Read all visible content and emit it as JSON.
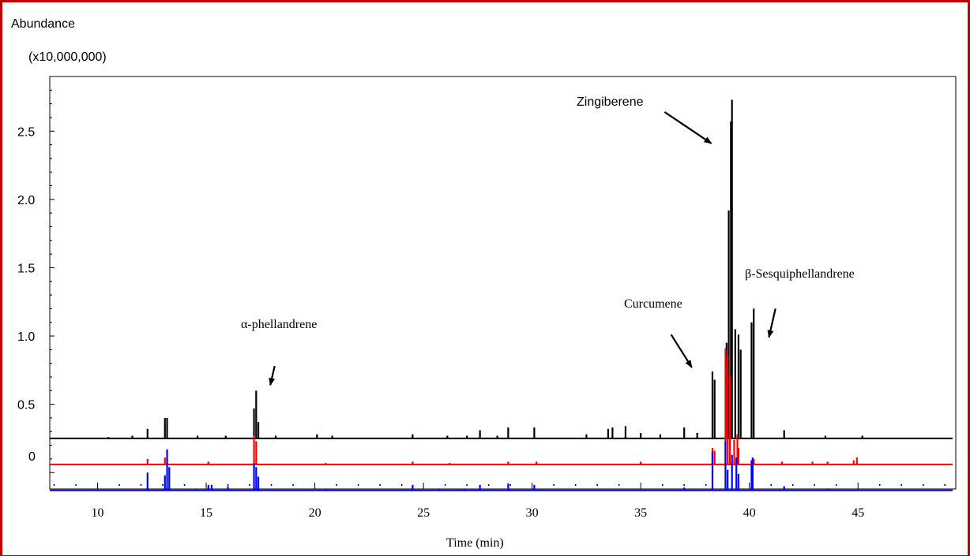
{
  "chart_data": {
    "type": "line",
    "ylabel": "Abundance",
    "yunit": "(x10,000,000)",
    "xlabel": "Time (min)",
    "xlim": [
      7.8,
      49.5
    ],
    "ylim": [
      -0.12,
      2.9
    ],
    "xticks": [
      10,
      15,
      20,
      25,
      30,
      35,
      40,
      45
    ],
    "xtick_labels": [
      "10",
      "15",
      "20",
      "25",
      "30",
      "35",
      "40",
      "45"
    ],
    "yticks": [
      0.5,
      1.0,
      1.5,
      2.0,
      2.5
    ],
    "ytick_labels": [
      "0.5",
      "1.0",
      "1.5",
      "2.0",
      "2.5"
    ],
    "yzero_label": "0",
    "series": [
      {
        "color": "#000000",
        "baseline": 0.25,
        "peaks": [
          [
            10.5,
            0.01
          ],
          [
            11.6,
            0.02
          ],
          [
            12.3,
            0.07
          ],
          [
            13.1,
            0.15
          ],
          [
            13.2,
            0.15
          ],
          [
            14.6,
            0.02
          ],
          [
            15.9,
            0.02
          ],
          [
            17.2,
            0.22
          ],
          [
            17.3,
            0.35
          ],
          [
            17.4,
            0.12
          ],
          [
            18.2,
            0.02
          ],
          [
            20.1,
            0.03
          ],
          [
            20.8,
            0.02
          ],
          [
            24.5,
            0.03
          ],
          [
            26.1,
            0.02
          ],
          [
            27.0,
            0.02
          ],
          [
            27.6,
            0.06
          ],
          [
            28.4,
            0.02
          ],
          [
            28.9,
            0.08
          ],
          [
            30.1,
            0.08
          ],
          [
            32.5,
            0.03
          ],
          [
            33.5,
            0.07
          ],
          [
            33.7,
            0.08
          ],
          [
            34.3,
            0.09
          ],
          [
            35.0,
            0.04
          ],
          [
            35.9,
            0.03
          ],
          [
            37.0,
            0.08
          ],
          [
            37.6,
            0.04
          ],
          [
            38.3,
            0.49
          ],
          [
            38.4,
            0.43
          ],
          [
            38.95,
            0.7
          ],
          [
            39.05,
            1.67
          ],
          [
            39.15,
            2.32
          ],
          [
            39.2,
            2.48
          ],
          [
            39.35,
            0.8
          ],
          [
            39.5,
            0.76
          ],
          [
            39.6,
            0.65
          ],
          [
            40.1,
            0.85
          ],
          [
            40.2,
            0.95
          ],
          [
            41.6,
            0.06
          ],
          [
            43.5,
            0.02
          ],
          [
            45.2,
            0.02
          ]
        ]
      },
      {
        "color": "#ff0000",
        "baseline": 0.06,
        "peaks": [
          [
            12.3,
            0.04
          ],
          [
            13.1,
            0.05
          ],
          [
            13.2,
            0.05
          ],
          [
            15.1,
            0.02
          ],
          [
            17.2,
            0.21
          ],
          [
            17.3,
            0.17
          ],
          [
            20.5,
            0.01
          ],
          [
            24.5,
            0.02
          ],
          [
            26.2,
            0.01
          ],
          [
            28.9,
            0.02
          ],
          [
            30.2,
            0.02
          ],
          [
            35.0,
            0.02
          ],
          [
            38.3,
            0.12
          ],
          [
            38.4,
            0.1
          ],
          [
            38.9,
            0.85
          ],
          [
            39.0,
            0.8
          ],
          [
            39.1,
            0.65
          ],
          [
            39.3,
            0.18
          ],
          [
            39.45,
            0.22
          ],
          [
            39.5,
            0.12
          ],
          [
            40.2,
            0.04
          ],
          [
            41.5,
            0.02
          ],
          [
            42.9,
            0.02
          ],
          [
            43.6,
            0.02
          ],
          [
            44.8,
            0.03
          ],
          [
            44.95,
            0.05
          ]
        ]
      },
      {
        "color": "#0000ff",
        "baseline": -0.13,
        "peaks": [
          [
            12.3,
            0.13
          ],
          [
            13.1,
            0.11
          ],
          [
            13.2,
            0.3
          ],
          [
            13.3,
            0.17
          ],
          [
            14.5,
            0.01
          ],
          [
            15.1,
            0.04
          ],
          [
            15.25,
            0.04
          ],
          [
            16.0,
            0.03
          ],
          [
            17.2,
            0.2
          ],
          [
            17.3,
            0.17
          ],
          [
            17.4,
            0.1
          ],
          [
            20.5,
            0.01
          ],
          [
            24.5,
            0.04
          ],
          [
            25.7,
            0.01
          ],
          [
            26.9,
            0.01
          ],
          [
            27.6,
            0.04
          ],
          [
            28.9,
            0.05
          ],
          [
            30.1,
            0.04
          ],
          [
            37.0,
            0.02
          ],
          [
            38.3,
            0.28
          ],
          [
            38.9,
            0.36
          ],
          [
            39.0,
            0.15
          ],
          [
            39.2,
            0.26
          ],
          [
            39.4,
            0.24
          ],
          [
            39.5,
            0.12
          ],
          [
            40.1,
            0.22
          ],
          [
            40.15,
            0.24
          ],
          [
            41.6,
            0.03
          ],
          [
            43.6,
            0.01
          ]
        ]
      }
    ],
    "annotations": [
      {
        "text": "α-phellandrene",
        "arrow_from": [
          18.15,
          0.78
        ],
        "arrow_to": [
          17.95,
          0.64
        ]
      },
      {
        "text": "Curcumene",
        "arrow_from": [
          36.4,
          1.01
        ],
        "arrow_to": [
          37.35,
          0.77
        ]
      },
      {
        "text": "Zingiberene",
        "arrow_from": [
          36.1,
          2.64
        ],
        "arrow_to": [
          38.25,
          2.41
        ]
      },
      {
        "text": "β-Sesquiphellandrene",
        "arrow_from": [
          41.2,
          1.2
        ],
        "arrow_to": [
          40.9,
          0.99
        ]
      }
    ]
  }
}
